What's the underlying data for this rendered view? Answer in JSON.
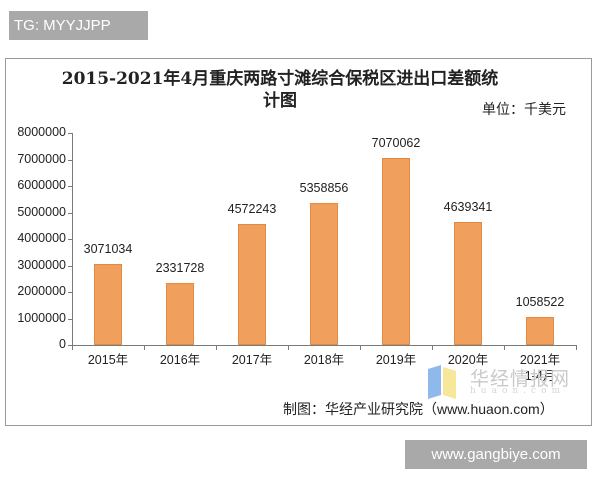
{
  "overlay": {
    "top_badge": "TG: MYYJJPP",
    "bottom_badge": "www.gangbiye.com"
  },
  "chart_data": {
    "type": "bar",
    "title": "2015-2021年4月重庆两路寸滩综合保税区进出口差额统计图",
    "title_line1": "2015-2021年4月重庆两路寸滩综合保税区进出口差额统",
    "title_line2": "计图",
    "unit": "单位：千美元",
    "categories": [
      "2015年",
      "2016年",
      "2017年",
      "2018年",
      "2019年",
      "2020年",
      "2021年 1-4月"
    ],
    "category_lines": [
      [
        "2015年"
      ],
      [
        "2016年"
      ],
      [
        "2017年"
      ],
      [
        "2018年"
      ],
      [
        "2019年"
      ],
      [
        "2020年"
      ],
      [
        "2021年",
        "1-4月"
      ]
    ],
    "values": [
      3071034,
      2331728,
      4572243,
      5358856,
      7070062,
      4639341,
      1058522
    ],
    "value_labels": [
      "3071034",
      "2331728",
      "4572243",
      "5358856",
      "7070062",
      "4639341",
      "1058522"
    ],
    "yticks": [
      "8000000",
      "7000000",
      "6000000",
      "5000000",
      "4000000",
      "3000000",
      "2000000",
      "1000000",
      "0"
    ],
    "ylim": [
      0,
      8000000
    ],
    "xlabel": "",
    "ylabel": "",
    "grid": false,
    "legend": null,
    "bar_color": "#f0a05c",
    "source": "制图：华经产业研究院（www.huaon.com）"
  },
  "watermark": {
    "text": "华经情报网",
    "sub": "huaon.com"
  }
}
